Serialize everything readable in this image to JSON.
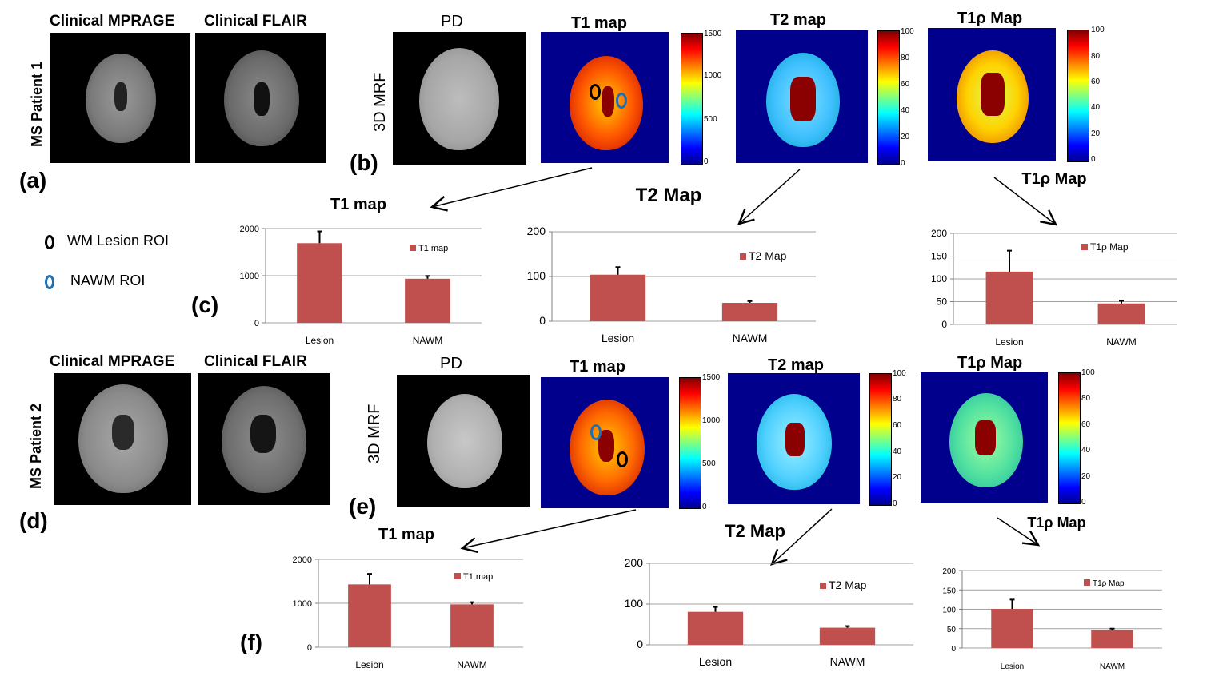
{
  "patient1": {
    "label": "MS Patient 1",
    "mprage": "Clinical MPRAGE",
    "flair": "Clinical FLAIR",
    "panel_a": "(a)",
    "panel_b": "(b)",
    "panel_c": "(c)",
    "mrf": "3D MRF",
    "pd": "PD",
    "t1": "T1 map",
    "t2": "T2 map",
    "t1rho": "T1ρ Map",
    "t1_ticks": [
      "1500",
      "1000",
      "500",
      "0"
    ],
    "t2_ticks": [
      "100",
      "80",
      "60",
      "40",
      "20",
      "0"
    ],
    "t1rho_ticks": [
      "100",
      "80",
      "60",
      "40",
      "20",
      "0"
    ]
  },
  "patient2": {
    "label": "MS Patient 2",
    "mprage": "Clinical MPRAGE",
    "flair": "Clinical FLAIR",
    "panel_d": "(d)",
    "panel_e": "(e)",
    "panel_f": "(f)",
    "mrf": "3D MRF",
    "pd": "PD",
    "t1": "T1 map",
    "t2": "T2 map",
    "t1rho": "T1ρ Map",
    "t1_ticks": [
      "1500",
      "1000",
      "500",
      "0"
    ],
    "t2_ticks": [
      "100",
      "80",
      "60",
      "40",
      "20",
      "0"
    ],
    "t1rho_ticks": [
      "100",
      "80",
      "60",
      "40",
      "20",
      "0"
    ]
  },
  "legend": {
    "lesion": "WM Lesion ROI",
    "nawm": "NAWM ROI",
    "lesion_color": "#000000",
    "nawm_color": "#1f6fb5"
  },
  "colors": {
    "bar": "#c0504d",
    "map_bg": "#00008c"
  },
  "chart_data": [
    {
      "id": "c1",
      "type": "bar",
      "title": "T1 map",
      "categories": [
        "Lesion",
        "NAWM"
      ],
      "values": [
        1690,
        935
      ],
      "errors": [
        250,
        60
      ],
      "ylim": [
        0,
        2000
      ],
      "yticks": [
        0,
        1000,
        2000
      ],
      "legend": "T1 map"
    },
    {
      "id": "c2",
      "type": "bar",
      "title": "T2 Map",
      "categories": [
        "Lesion",
        "NAWM"
      ],
      "values": [
        104,
        41
      ],
      "errors": [
        17,
        4
      ],
      "ylim": [
        0,
        200
      ],
      "yticks": [
        0,
        100,
        200
      ],
      "legend": "T2 Map"
    },
    {
      "id": "c3",
      "type": "bar",
      "title": "T1ρ Map",
      "categories": [
        "Lesion",
        "NAWM"
      ],
      "values": [
        116,
        46
      ],
      "errors": [
        46,
        6
      ],
      "ylim": [
        0,
        200
      ],
      "yticks": [
        0,
        50,
        100,
        150,
        200
      ],
      "legend": "T1ρ Map"
    },
    {
      "id": "c4",
      "type": "bar",
      "title": "T1 map",
      "categories": [
        "Lesion",
        "NAWM"
      ],
      "values": [
        1430,
        975
      ],
      "errors": [
        240,
        50
      ],
      "ylim": [
        0,
        2000
      ],
      "yticks": [
        0,
        1000,
        2000
      ],
      "legend": "T1 map"
    },
    {
      "id": "c5",
      "type": "bar",
      "title": "T2 Map",
      "categories": [
        "Lesion",
        "NAWM"
      ],
      "values": [
        81,
        42
      ],
      "errors": [
        12,
        4
      ],
      "ylim": [
        0,
        200
      ],
      "yticks": [
        0,
        100,
        200
      ],
      "legend": "T2 Map"
    },
    {
      "id": "c6",
      "type": "bar",
      "title": "T1ρ Map",
      "categories": [
        "Lesion",
        "NAWM"
      ],
      "values": [
        101,
        46
      ],
      "errors": [
        24,
        4
      ],
      "ylim": [
        0,
        200
      ],
      "yticks": [
        0,
        50,
        100,
        150,
        200
      ],
      "legend": "T1ρ Map"
    }
  ]
}
